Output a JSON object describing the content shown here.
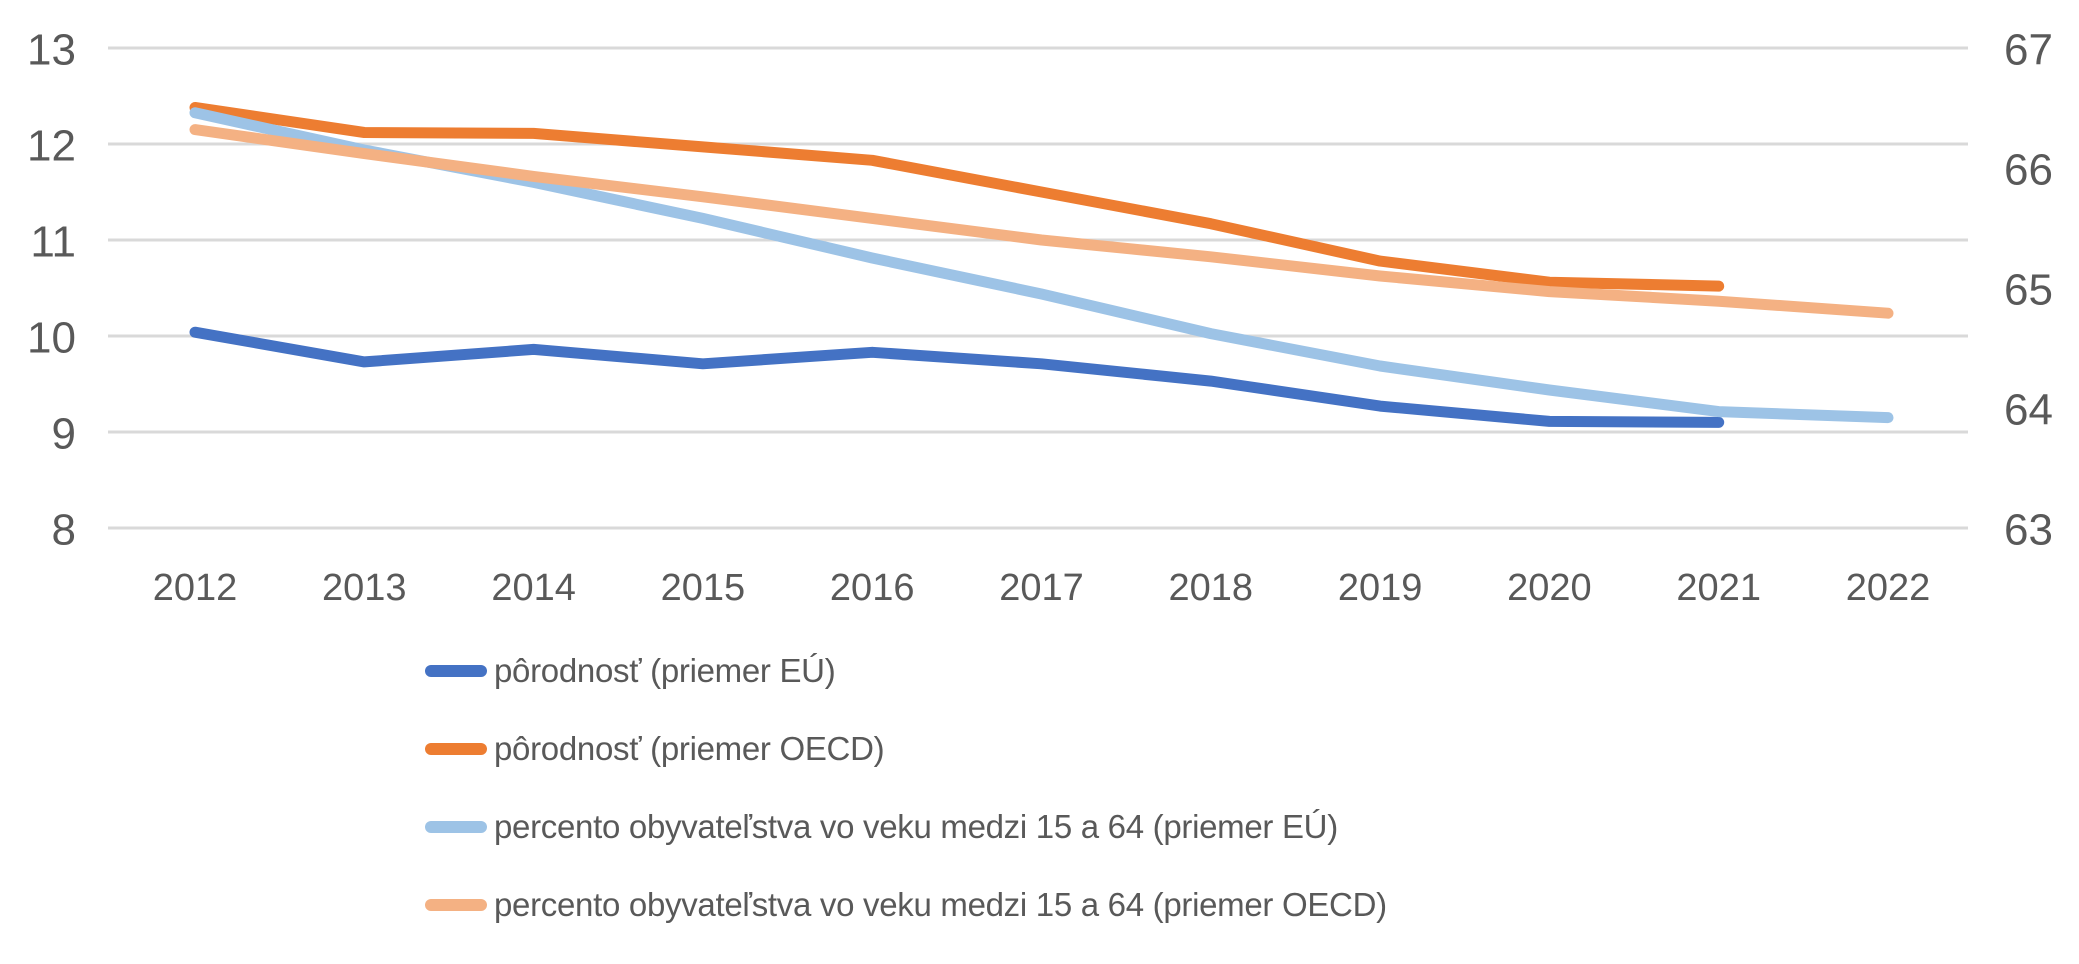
{
  "chart": {
    "background": "#ffffff",
    "text_color": "#595959",
    "gridline_color": "#d9d9d9",
    "accent_colors": [
      "#4472C4",
      "#ED7D31",
      "#9DC3E6",
      "#F4B183"
    ]
  },
  "chart_data": {
    "type": "line",
    "title": "",
    "xlabel": "",
    "ylabel": "",
    "grid": true,
    "legend_position": "bottom-left",
    "x": [
      2012,
      2013,
      2014,
      2015,
      2016,
      2017,
      2018,
      2019,
      2020,
      2021,
      2022
    ],
    "axes": {
      "left": {
        "min": 8,
        "max": 13,
        "ticks": [
          13,
          12,
          11,
          10,
          9,
          8
        ]
      },
      "right": {
        "min": 63,
        "max": 67,
        "ticks": [
          67,
          66,
          65,
          64,
          63
        ]
      }
    },
    "series": [
      {
        "id": "birth-eu",
        "name": "pôrodnosť (priemer EÚ)",
        "axis": "left",
        "color": "#4472C4",
        "values": [
          10.04,
          9.73,
          9.86,
          9.71,
          9.83,
          9.71,
          9.53,
          9.27,
          9.11,
          9.1
        ]
      },
      {
        "id": "birth-oecd",
        "name": "pôrodnosť (priemer OECD)",
        "axis": "left",
        "color": "#ED7D31",
        "values": [
          12.38,
          12.12,
          12.11,
          11.97,
          11.83,
          11.5,
          11.17,
          10.78,
          10.56,
          10.52
        ]
      },
      {
        "id": "pop-15-64-eu",
        "name": "percento obyvateľstva vo veku medzi 15 a 64 (priemer EÚ)",
        "axis": "right",
        "color": "#9DC3E6",
        "values": [
          66.46,
          66.15,
          65.88,
          65.58,
          65.25,
          64.95,
          64.62,
          64.35,
          64.15,
          63.97,
          63.92
        ]
      },
      {
        "id": "pop-15-64-oecd",
        "name": "percento obyvateľstva vo veku medzi 15 a 64 (priemer OECD)",
        "axis": "right",
        "color": "#F4B183",
        "values": [
          66.32,
          66.12,
          65.93,
          65.76,
          65.58,
          65.4,
          65.26,
          65.1,
          64.97,
          64.89,
          64.79
        ]
      }
    ]
  }
}
